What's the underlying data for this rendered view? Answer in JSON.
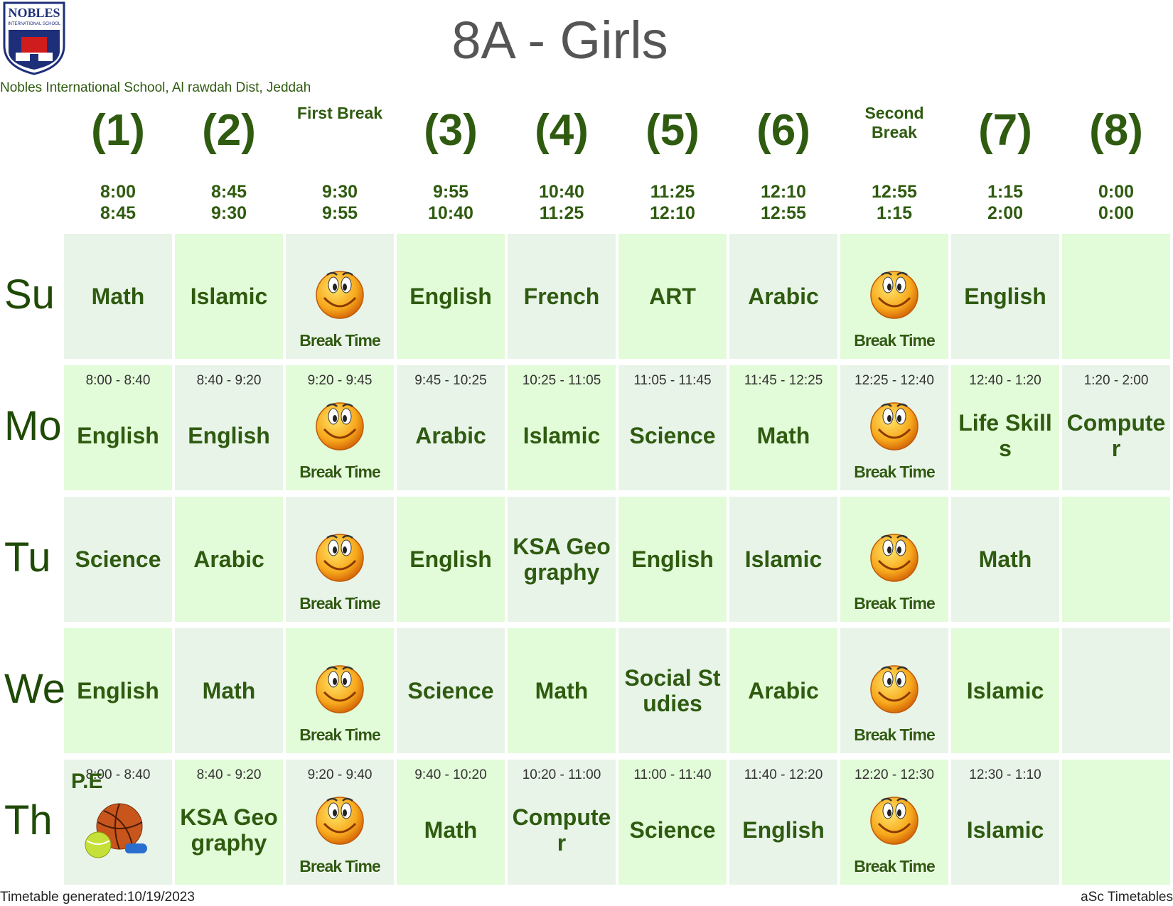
{
  "logo": {
    "name": "NOBLES",
    "subtitle": "INTERNATIONAL SCHOOL"
  },
  "header": {
    "title": "8A - Girls",
    "school": "Nobles International School, Al rawdah Dist, Jeddah"
  },
  "columns": [
    {
      "label": "(1)",
      "start": "8:00",
      "end": "8:45"
    },
    {
      "label": "(2)",
      "start": "8:45",
      "end": "9:30"
    },
    {
      "label": "First Break",
      "start": "9:30",
      "end": "9:55"
    },
    {
      "label": "(3)",
      "start": "9:55",
      "end": "10:40"
    },
    {
      "label": "(4)",
      "start": "10:40",
      "end": "11:25"
    },
    {
      "label": "(5)",
      "start": "11:25",
      "end": "12:10"
    },
    {
      "label": "(6)",
      "start": "12:10",
      "end": "12:55"
    },
    {
      "label": "Second Break",
      "start": "12:55",
      "end": "1:15"
    },
    {
      "label": "(7)",
      "start": "1:15",
      "end": "2:00"
    },
    {
      "label": "(8)",
      "start": "0:00",
      "end": "0:00"
    }
  ],
  "rows": [
    {
      "day": "Su",
      "cells": [
        {
          "subject": "Math"
        },
        {
          "subject": "Islamic"
        },
        {
          "break": "Break Time"
        },
        {
          "subject": "English"
        },
        {
          "subject": "French"
        },
        {
          "subject": "ART"
        },
        {
          "subject": "Arabic"
        },
        {
          "break": "Break Time"
        },
        {
          "subject": "English"
        },
        null
      ]
    },
    {
      "day": "Mo",
      "cells": [
        {
          "time": "8:00 - 8:40",
          "subject": "English"
        },
        {
          "time": "8:40 - 9:20",
          "subject": "English"
        },
        {
          "time": "9:20 - 9:45",
          "break": "Break Time"
        },
        {
          "time": "9:45 - 10:25",
          "subject": "Arabic"
        },
        {
          "time": "10:25 - 11:05",
          "subject": "Islamic"
        },
        {
          "time": "11:05 - 11:45",
          "subject": "Science"
        },
        {
          "time": "11:45 - 12:25",
          "subject": "Math"
        },
        {
          "time": "12:25 - 12:40",
          "break": "Break Time"
        },
        {
          "time": "12:40 - 1:20",
          "subject": "Life Skills"
        },
        {
          "time": "1:20 - 2:00",
          "subject": "Computer"
        }
      ]
    },
    {
      "day": "Tu",
      "cells": [
        {
          "subject": "Science"
        },
        {
          "subject": "Arabic"
        },
        {
          "break": "Break Time"
        },
        {
          "subject": "English"
        },
        {
          "subject": "KSA Geography"
        },
        {
          "subject": "English"
        },
        {
          "subject": "Islamic"
        },
        {
          "break": "Break Time"
        },
        {
          "subject": "Math"
        },
        null
      ]
    },
    {
      "day": "We",
      "cells": [
        {
          "subject": "English"
        },
        {
          "subject": "Math"
        },
        {
          "break": "Break Time"
        },
        {
          "subject": "Science"
        },
        {
          "subject": "Math"
        },
        {
          "subject": "Social Studies"
        },
        {
          "subject": "Arabic"
        },
        {
          "break": "Break Time"
        },
        {
          "subject": "Islamic"
        },
        null
      ]
    },
    {
      "day": "Th",
      "cells": [
        {
          "time": "8:00 - 8:40",
          "sport": "P.E"
        },
        {
          "time": "8:40 - 9:20",
          "subject": "KSA Geography"
        },
        {
          "time": "9:20 - 9:40",
          "break": "Break Time"
        },
        {
          "time": "9:40 - 10:20",
          "subject": "Math"
        },
        {
          "time": "10:20 - 11:00",
          "subject": "Computer"
        },
        {
          "time": "11:00 - 11:40",
          "subject": "Science"
        },
        {
          "time": "11:40 - 12:20",
          "subject": "English"
        },
        {
          "time": "12:20 - 12:30",
          "break": "Break Time"
        },
        {
          "time": "12:30 - 1:10",
          "subject": "Islamic"
        },
        null
      ]
    }
  ],
  "footer": {
    "generated": "Timetable generated:10/19/2023",
    "brand": "aSc Timetables"
  }
}
